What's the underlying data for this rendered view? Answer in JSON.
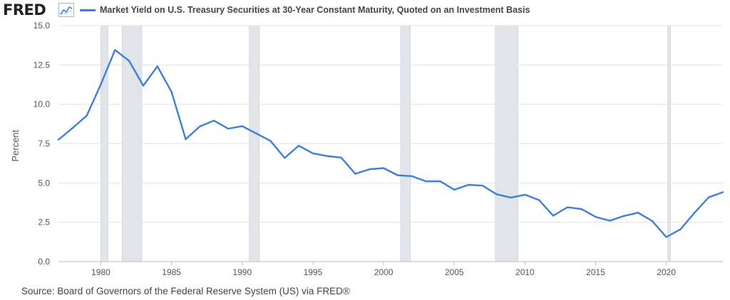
{
  "header": {
    "logo_text": "FRED",
    "logo_icon": "line-chart-icon"
  },
  "source": "Source: Board of Governors of the Federal Reserve System (US) via FRED®",
  "colors": {
    "series": "#3d7fd6",
    "recession": "#e1e5ea",
    "grid": "#e3e3e3",
    "axis": "#bbbbbb"
  },
  "chart_data": {
    "type": "line",
    "title": "",
    "xlabel": "",
    "ylabel": "Percent",
    "xlim": [
      1977,
      2024
    ],
    "ylim": [
      0,
      15
    ],
    "grid": true,
    "legend_position": "top-left",
    "x_ticks": [
      1980,
      1985,
      1990,
      1995,
      2000,
      2005,
      2010,
      2015,
      2020
    ],
    "y_ticks": [
      0,
      2.5,
      5,
      7.5,
      10,
      12.5,
      15
    ],
    "y_tick_labels": [
      "0.0",
      "2.5",
      "5.0",
      "7.5",
      "10.0",
      "12.5",
      "15.0"
    ],
    "recessions": [
      [
        1980.0,
        1980.5
      ],
      [
        1981.5,
        1982.9
      ],
      [
        1990.5,
        1991.2
      ],
      [
        2001.2,
        2001.9
      ],
      [
        2007.9,
        2009.5
      ],
      [
        2020.1,
        2020.3
      ]
    ],
    "series": [
      {
        "name": "Market Yield on U.S. Treasury Securities at 30-Year Constant Maturity, Quoted on an Investment Basis",
        "x": [
          1977,
          1978,
          1979,
          1980,
          1981,
          1982,
          1983,
          1984,
          1985,
          1986,
          1987,
          1988,
          1989,
          1990,
          1991,
          1992,
          1993,
          1994,
          1995,
          1996,
          1997,
          1998,
          1999,
          2000,
          2001,
          2002,
          2003,
          2004,
          2005,
          2006,
          2007,
          2008,
          2009,
          2010,
          2011,
          2012,
          2013,
          2014,
          2015,
          2016,
          2017,
          2018,
          2019,
          2020,
          2021,
          2022,
          2023,
          2024
        ],
        "values": [
          7.75,
          8.49,
          9.28,
          11.27,
          13.45,
          12.76,
          11.18,
          12.41,
          10.79,
          7.78,
          8.59,
          8.96,
          8.45,
          8.61,
          8.14,
          7.67,
          6.59,
          7.37,
          6.88,
          6.71,
          6.61,
          5.58,
          5.87,
          5.94,
          5.49,
          5.43,
          5.1,
          5.11,
          4.57,
          4.88,
          4.83,
          4.28,
          4.07,
          4.25,
          3.91,
          2.92,
          3.45,
          3.34,
          2.84,
          2.6,
          2.9,
          3.11,
          2.58,
          1.56,
          2.05,
          3.11,
          4.09,
          4.41
        ]
      }
    ]
  }
}
